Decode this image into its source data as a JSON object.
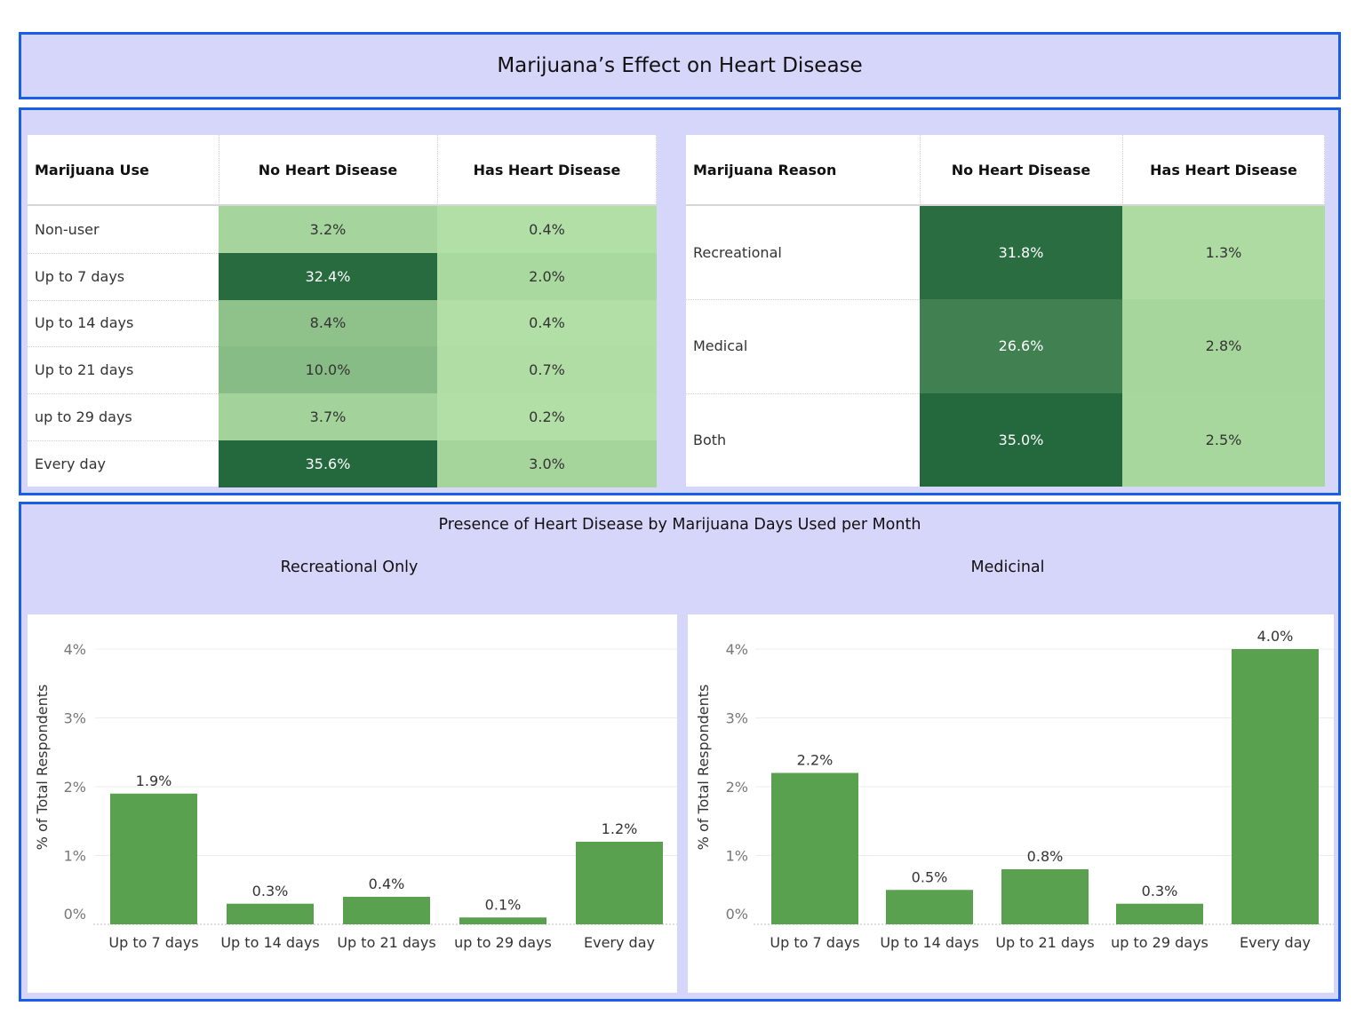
{
  "dashboard": {
    "title": "Marijuana’s Effect on Heart Disease"
  },
  "colors": {
    "panel_bg": "#d6d6fb",
    "panel_border": "#1a5ee8",
    "bar": "#59a14f",
    "heat_scale": [
      "#b3e0a6",
      "#24693d"
    ]
  },
  "use_table": {
    "headers": [
      "Marijuana Use",
      "No Heart Disease",
      "Has Heart Disease"
    ],
    "rows": [
      {
        "label": "Non-user",
        "no": "3.2%",
        "has": "0.4%"
      },
      {
        "label": "Up to 7 days",
        "no": "32.4%",
        "has": "2.0%"
      },
      {
        "label": "Up to 14 days",
        "no": "8.4%",
        "has": "0.4%"
      },
      {
        "label": "Up to 21 days",
        "no": "10.0%",
        "has": "0.7%"
      },
      {
        "label": "up to 29 days",
        "no": "3.7%",
        "has": "0.2%"
      },
      {
        "label": "Every day",
        "no": "35.6%",
        "has": "3.0%"
      }
    ]
  },
  "reason_table": {
    "headers": [
      "Marijuana Reason",
      "No Heart Disease",
      "Has Heart Disease"
    ],
    "rows": [
      {
        "label": "Recreational",
        "no": "31.8%",
        "has": "1.3%"
      },
      {
        "label": "Medical",
        "no": "26.6%",
        "has": "2.8%"
      },
      {
        "label": "Both",
        "no": "35.0%",
        "has": "2.5%"
      }
    ]
  },
  "charts_section": {
    "title": "Presence of Heart Disease by Marijuana Days Used per Month"
  },
  "chart_data": [
    {
      "type": "bar",
      "title": "Recreational Only",
      "ylabel": "% of Total Respondents",
      "categories": [
        "Up to 7 days",
        "Up to 14 days",
        "Up to 21 days",
        "up to 29 days",
        "Every day"
      ],
      "values": [
        1.9,
        0.3,
        0.4,
        0.1,
        1.2
      ],
      "labels": [
        "1.9%",
        "0.3%",
        "0.4%",
        "0.1%",
        "1.2%"
      ],
      "yticks": [
        "0%",
        "1%",
        "2%",
        "3%",
        "4%"
      ],
      "ylim": [
        0,
        4.3
      ],
      "grid": true
    },
    {
      "type": "bar",
      "title": "Medicinal",
      "ylabel": "% of Total Respondents",
      "categories": [
        "Up to 7 days",
        "Up to 14 days",
        "Up to 21 days",
        "up to 29 days",
        "Every day"
      ],
      "values": [
        2.2,
        0.5,
        0.8,
        0.3,
        4.0
      ],
      "labels": [
        "2.2%",
        "0.5%",
        "0.8%",
        "0.3%",
        "4.0%"
      ],
      "yticks": [
        "0%",
        "1%",
        "2%",
        "3%",
        "4%"
      ],
      "ylim": [
        0,
        4.3
      ],
      "grid": true
    }
  ]
}
